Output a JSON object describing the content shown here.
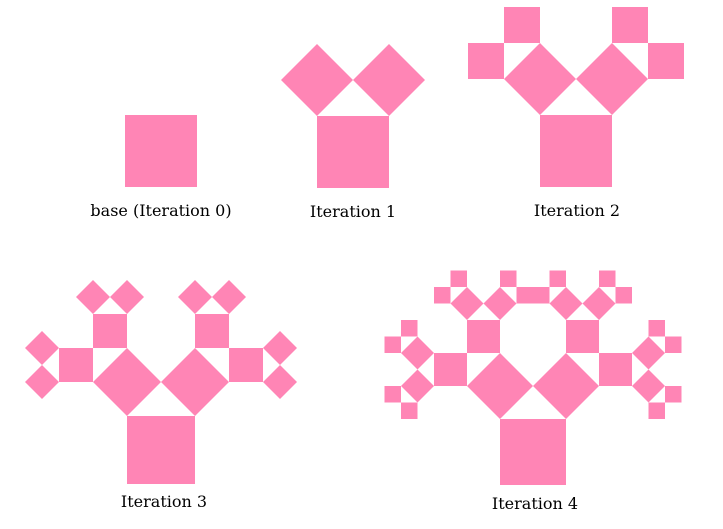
{
  "figure": {
    "fill_color": "#ff85b5",
    "background": "#ffffff",
    "shape": "square",
    "angle_degrees": 45,
    "scale_ratio": 0.7071
  },
  "panels": [
    {
      "id": "iteration-0",
      "caption": "base (Iteration 0)",
      "iterations": 0
    },
    {
      "id": "iteration-1",
      "caption": "Iteration 1",
      "iterations": 1
    },
    {
      "id": "iteration-2",
      "caption": "Iteration 2",
      "iterations": 2
    },
    {
      "id": "iteration-3",
      "caption": "Iteration 3",
      "iterations": 3
    },
    {
      "id": "iteration-4",
      "caption": "Iteration 4",
      "iterations": 4
    }
  ]
}
